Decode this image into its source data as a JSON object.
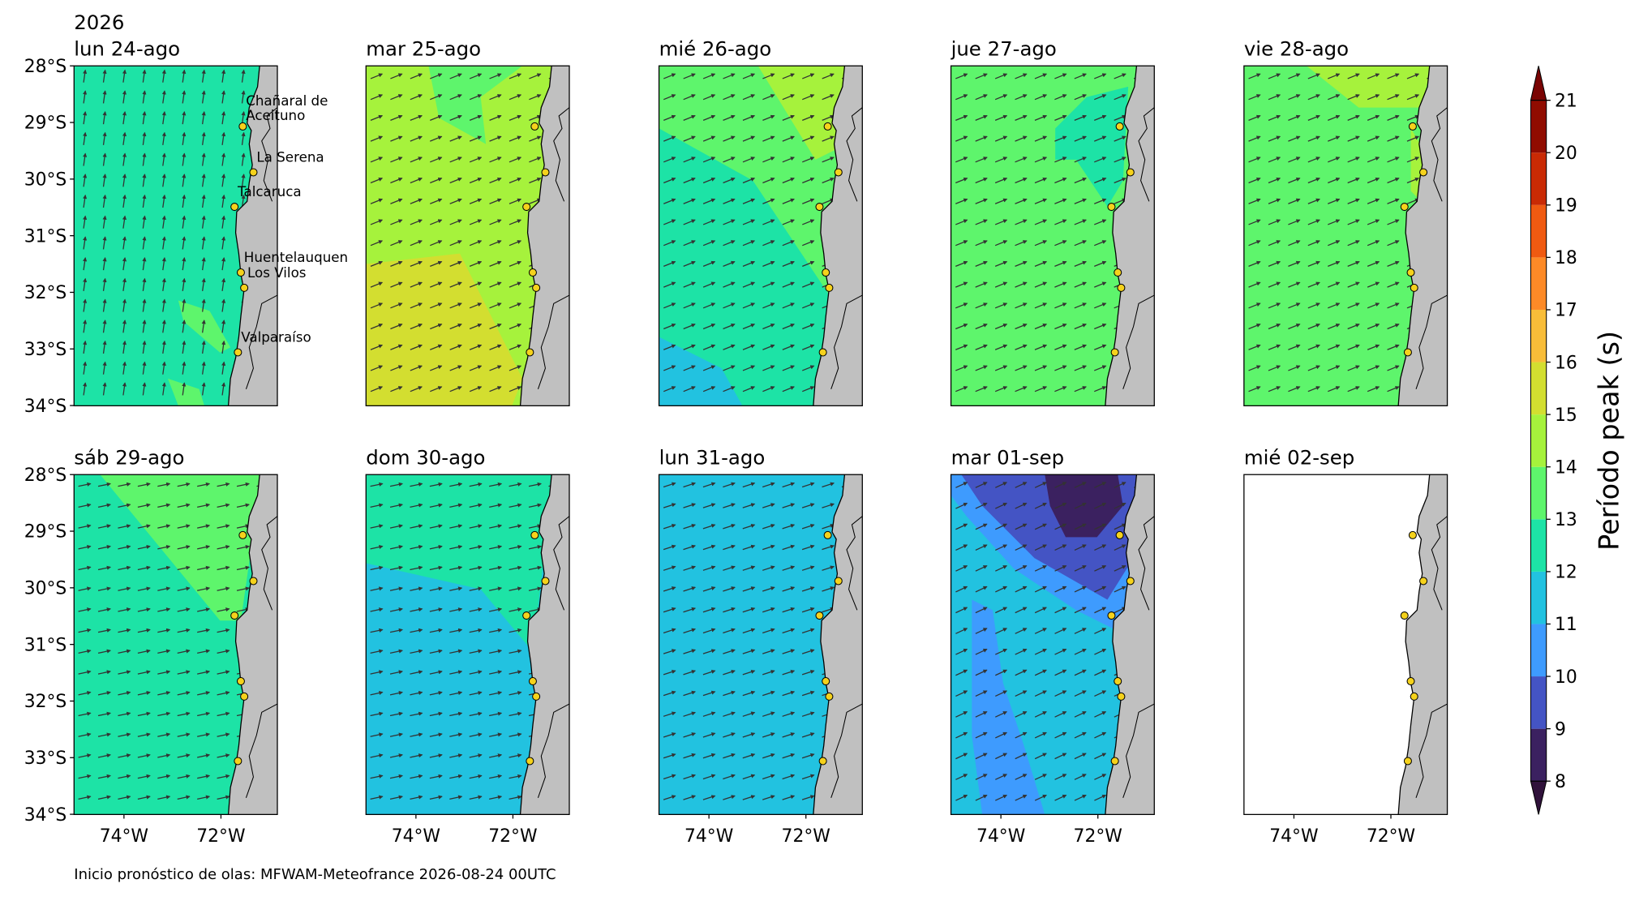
{
  "year": "2026",
  "panels": [
    {
      "title": "lun 24-ago"
    },
    {
      "title": "mar 25-ago"
    },
    {
      "title": "mié 26-ago"
    },
    {
      "title": "jue 27-ago"
    },
    {
      "title": "vie 28-ago"
    },
    {
      "title": "sáb 29-ago"
    },
    {
      "title": "dom 30-ago"
    },
    {
      "title": "lun 31-ago"
    },
    {
      "title": "mar 01-sep"
    },
    {
      "title": "mié 02-sep"
    }
  ],
  "lat_ticks": [
    {
      "value": -28,
      "label": "28°S"
    },
    {
      "value": -29,
      "label": "29°S"
    },
    {
      "value": -30,
      "label": "30°S"
    },
    {
      "value": -31,
      "label": "31°S"
    },
    {
      "value": -32,
      "label": "32°S"
    },
    {
      "value": -33,
      "label": "33°S"
    },
    {
      "value": -34,
      "label": "34°S"
    }
  ],
  "lon_ticks": [
    {
      "value": -74,
      "label": "74°W"
    },
    {
      "value": -72,
      "label": "72°W"
    }
  ],
  "stations": [
    {
      "name": [
        "Chañaral de",
        "Aceituno"
      ],
      "lat": -29.07,
      "lon": -71.55
    },
    {
      "name": [
        "La Serena"
      ],
      "lat": -29.88,
      "lon": -71.33
    },
    {
      "name": [
        "Talcaruca"
      ],
      "lat": -30.49,
      "lon": -71.72
    },
    {
      "name": [
        "Huentelauquen"
      ],
      "lat": -31.65,
      "lon": -71.59
    },
    {
      "name": [
        "Los Vilos"
      ],
      "lat": -31.92,
      "lon": -71.52
    },
    {
      "name": [
        "Valparaíso"
      ],
      "lat": -33.06,
      "lon": -71.65
    }
  ],
  "colorbar": {
    "label": "Período peak (s)",
    "ticks": [
      8,
      9,
      10,
      11,
      12,
      13,
      14,
      15,
      16,
      17,
      18,
      19,
      20,
      21
    ],
    "colors": [
      "#3b2160",
      "#4454c4",
      "#3e9bfe",
      "#22c2e0",
      "#1de3a6",
      "#5ef56c",
      "#a6f23c",
      "#d3de30",
      "#f8bd39",
      "#fd8a27",
      "#ef5a11",
      "#c92a04",
      "#900c00"
    ],
    "under_color": "#30123b",
    "over_color": "#7a0403"
  },
  "footer": "Inicio pronóstico de olas: MFWAM-Meteofrance 2026-08-24 00UTC"
}
